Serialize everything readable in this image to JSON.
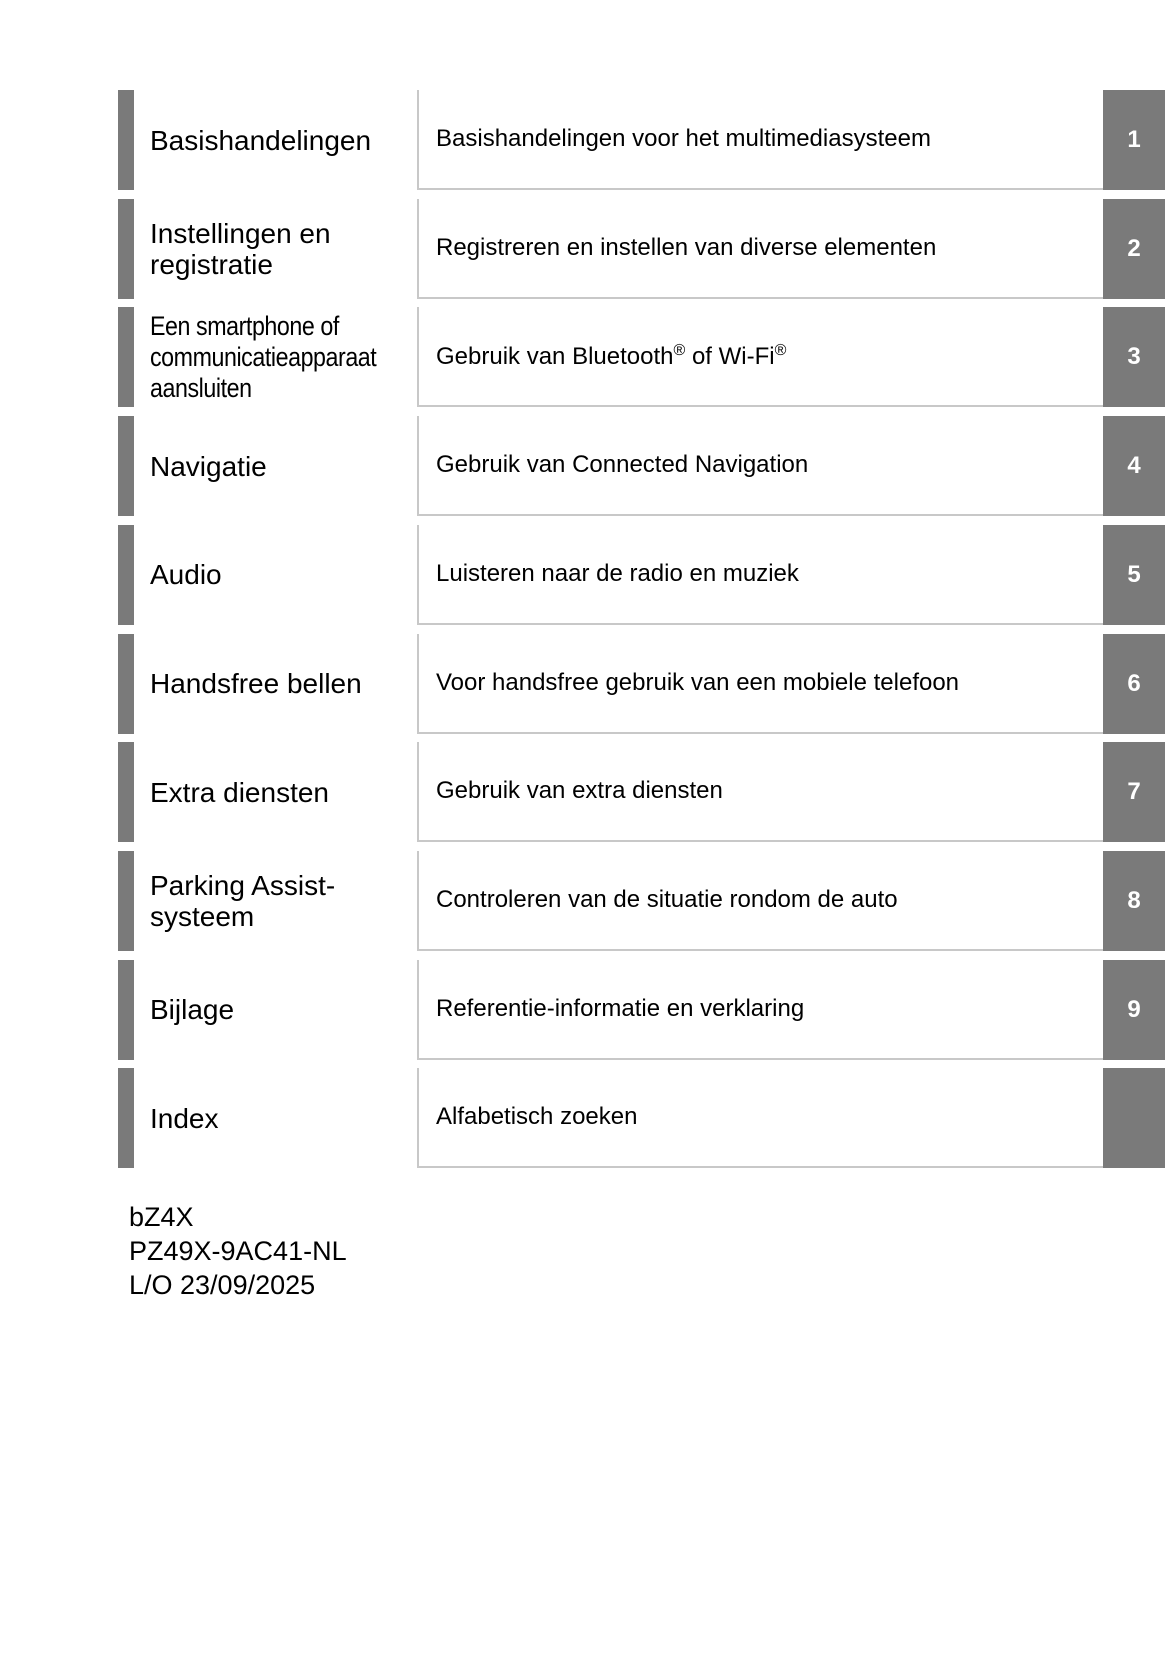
{
  "sections": [
    {
      "title": "Basishandelingen",
      "description": "Basishandelingen voor het multimediasysteem",
      "number": "1"
    },
    {
      "title": "Instellingen en registratie",
      "description": "Registreren en instellen van diverse elementen",
      "number": "2"
    },
    {
      "title": "Een smartphone of communicatieapparaat aansluiten",
      "description_parts": [
        "Gebruik van Bluetooth",
        "®",
        " of Wi-Fi",
        "®"
      ],
      "number": "3"
    },
    {
      "title": "Navigatie",
      "description": "Gebruik van Connected Navigation",
      "number": "4"
    },
    {
      "title": "Audio",
      "description": "Luisteren naar de radio en muziek",
      "number": "5"
    },
    {
      "title": "Handsfree bellen",
      "description": "Voor handsfree gebruik van een mobiele telefoon",
      "number": "6"
    },
    {
      "title": "Extra diensten",
      "description": "Gebruik van extra diensten",
      "number": "7"
    },
    {
      "title": "Parking Assist-systeem",
      "description": "Controleren van de situatie rondom de auto",
      "number": "8"
    },
    {
      "title": "Bijlage",
      "description": "Referentie-informatie en verklaring",
      "number": "9"
    },
    {
      "title": "Index",
      "description": "Alfabetisch zoeken",
      "number": ""
    }
  ],
  "footer": {
    "model": "bZ4X",
    "code": "PZ49X-9AC41-NL",
    "date": "L/O 23/09/2025"
  },
  "colors": {
    "tab": "#7a7a7a",
    "border": "#c8c8c8"
  }
}
